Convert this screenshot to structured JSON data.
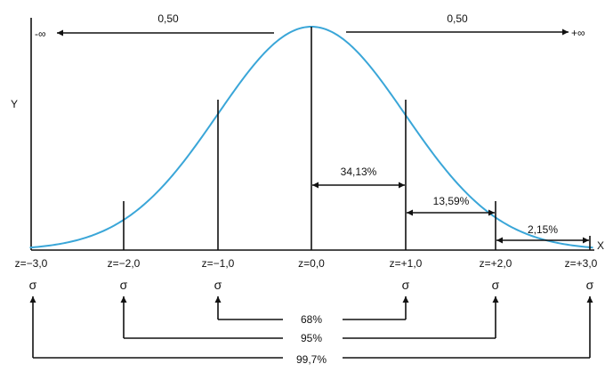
{
  "colors": {
    "curve": "#3aa6d8",
    "ink": "#111111",
    "background": "#ffffff"
  },
  "axis": {
    "y_label": "Y",
    "x_label": "X"
  },
  "tails": {
    "left": {
      "value": "0,50",
      "end": "-∞"
    },
    "right": {
      "value": "0,50",
      "end": "+∞"
    }
  },
  "intervals": [
    {
      "label": "34,13%"
    },
    {
      "label": "13,59%"
    },
    {
      "label": "2,15%"
    }
  ],
  "z_labels": [
    "z=−3,0",
    "z=−2,0",
    "z=−1,0",
    "z=0,0",
    "z=+1,0",
    "z=+2,0",
    "z=+3,0"
  ],
  "sigma_symbol": "σ",
  "coverage": [
    {
      "label": "68%"
    },
    {
      "label": "95%"
    },
    {
      "label": "99,7%"
    }
  ]
}
